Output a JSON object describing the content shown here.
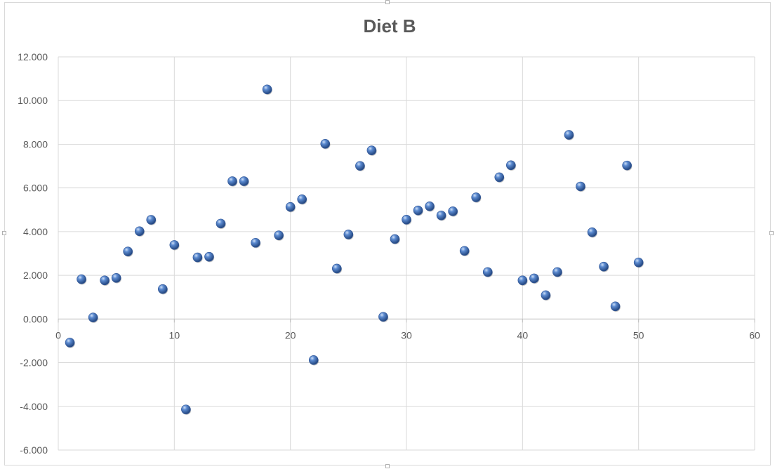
{
  "chart_data": {
    "type": "scatter",
    "title": "Diet B",
    "xlabel": "",
    "ylabel": "",
    "xlim": [
      0,
      60
    ],
    "ylim": [
      -6,
      12
    ],
    "x_ticks": [
      "0",
      "10",
      "20",
      "30",
      "40",
      "50",
      "60"
    ],
    "y_ticks": [
      "12.000",
      "10.000",
      "8.000",
      "6.000",
      "4.000",
      "2.000",
      "0.000",
      "-2.000",
      "-4.000",
      "-6.000"
    ],
    "grid": true,
    "legend": "none",
    "marker_color": "#4f7fc3",
    "series": [
      {
        "x": [
          1,
          2,
          3,
          4,
          5,
          6,
          7,
          8,
          9,
          10,
          11,
          12,
          13,
          14,
          15,
          16,
          17,
          18,
          19,
          20,
          21,
          22,
          23,
          24,
          25,
          26,
          27,
          28,
          29,
          30,
          31,
          32,
          33,
          34,
          35,
          36,
          37,
          38,
          39,
          40,
          41,
          42,
          43,
          44,
          45,
          46,
          47,
          48,
          49,
          50
        ],
        "y": [
          -1.08,
          1.82,
          0.07,
          1.77,
          1.88,
          3.09,
          4.02,
          4.54,
          1.37,
          3.39,
          -4.14,
          2.82,
          2.85,
          4.37,
          6.31,
          6.31,
          3.49,
          10.51,
          3.83,
          5.13,
          5.48,
          -1.88,
          8.02,
          2.31,
          3.87,
          7.01,
          7.72,
          0.1,
          3.66,
          4.55,
          4.97,
          5.16,
          4.74,
          4.93,
          3.12,
          5.57,
          2.15,
          6.49,
          7.04,
          1.77,
          1.86,
          1.09,
          2.15,
          8.43,
          6.07,
          3.97,
          2.4,
          0.58,
          7.03,
          2.59
        ]
      }
    ]
  }
}
